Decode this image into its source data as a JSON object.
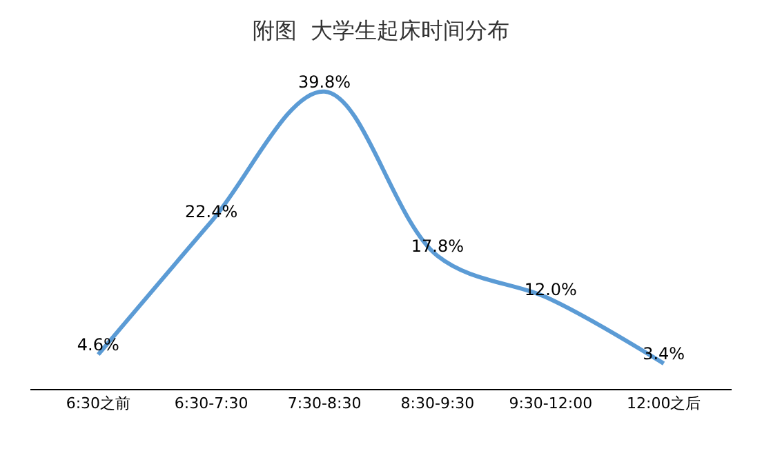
{
  "chart_data": {
    "type": "line",
    "title": "附图  大学生起床时间分布",
    "categories": [
      "6:30之前",
      "6:30-7:30",
      "7:30-8:30",
      "8:30-9:30",
      "9:30-12:00",
      "12:00之后"
    ],
    "series": [
      {
        "color": "#5b9bd5",
        "values": [
          4.6,
          22.4,
          39.8,
          17.8,
          12.0,
          3.4
        ],
        "value_labels": [
          "4.6%",
          "22.4%",
          "39.8%",
          "17.8%",
          "12.0%",
          "3.4%"
        ]
      }
    ],
    "marker": "none",
    "line_style": "solid",
    "tick_labels": "x"
  }
}
